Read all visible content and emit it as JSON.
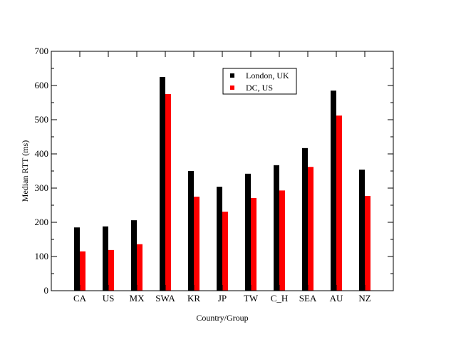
{
  "chart_data": {
    "type": "bar",
    "title": "",
    "xlabel": "Country/Group",
    "ylabel": "Median RTT (ms)",
    "ylim": [
      0,
      700
    ],
    "yticks": [
      0,
      100,
      200,
      300,
      400,
      500,
      600,
      700
    ],
    "categories": [
      "CA",
      "US",
      "MX",
      "SWA",
      "KR",
      "JP",
      "TW",
      "C_H",
      "SEA",
      "AU",
      "NZ"
    ],
    "series": [
      {
        "name": "London, UK",
        "color": "#000000",
        "values": [
          185,
          188,
          206,
          625,
          350,
          304,
          342,
          367,
          417,
          585,
          354
        ]
      },
      {
        "name": "DC, US",
        "color": "#ff0000",
        "values": [
          115,
          119,
          136,
          575,
          275,
          231,
          271,
          293,
          362,
          512,
          277
        ]
      }
    ],
    "grid": false,
    "legend_position": "top-center"
  }
}
